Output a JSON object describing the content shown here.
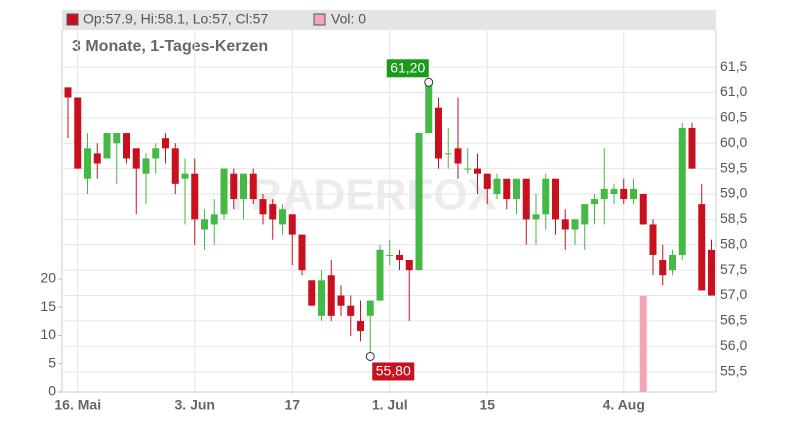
{
  "chart_data": {
    "type": "candlestick",
    "title": "3 Monate, 1-Tages-Kerzen",
    "watermark": "TRADERFOX",
    "header": {
      "ohlc": "Op:57.9, Hi:58.1, Lo:57, Cl:57",
      "volume": "Vol: 0"
    },
    "up_color": "#44b944",
    "down_color": "#c8101e",
    "volume_color": "#f0a6b3",
    "categories": [
      null,
      "16. Mai",
      null,
      null,
      null,
      null,
      null,
      null,
      null,
      null,
      null,
      null,
      null,
      "3. Jun",
      null,
      null,
      null,
      null,
      null,
      null,
      null,
      null,
      null,
      "17",
      null,
      null,
      null,
      null,
      null,
      null,
      null,
      null,
      null,
      "1. Jul",
      null,
      null,
      null,
      null,
      null,
      null,
      null,
      null,
      null,
      "15",
      null,
      null,
      null,
      null,
      null,
      null,
      null,
      null,
      null,
      null,
      null,
      null,
      null,
      "4. Aug",
      null,
      null,
      null,
      null,
      null,
      null,
      null,
      null,
      null
    ],
    "open": [
      61.1,
      60.9,
      59.3,
      59.8,
      59.7,
      60.0,
      60.2,
      59.9,
      59.4,
      59.7,
      60.1,
      59.9,
      59.3,
      59.4,
      58.3,
      58.4,
      58.6,
      59.4,
      58.9,
      59.4,
      58.9,
      58.8,
      58.4,
      58.6,
      58.2,
      57.3,
      56.6,
      57.4,
      57.0,
      56.8,
      56.5,
      56.6,
      56.9,
      57.8,
      57.8,
      57.7,
      57.5,
      60.2,
      60.7,
      59.8,
      59.9,
      59.5,
      59.5,
      59.4,
      59.0,
      59.3,
      58.9,
      59.3,
      58.5,
      58.6,
      59.3,
      58.5,
      58.3,
      58.4,
      58.8,
      58.9,
      59.0,
      59.1,
      58.9,
      59.0,
      58.4,
      57.7,
      57.5,
      57.8,
      60.3,
      58.8,
      57.9
    ],
    "high": [
      61.1,
      60.9,
      60.2,
      60.0,
      60.2,
      60.2,
      60.2,
      59.9,
      59.8,
      60.0,
      60.2,
      60.0,
      59.7,
      59.7,
      58.7,
      58.9,
      59.5,
      59.5,
      59.4,
      59.5,
      59.0,
      58.9,
      58.8,
      58.6,
      58.2,
      57.3,
      57.5,
      57.7,
      57.2,
      57.0,
      56.9,
      56.9,
      58.0,
      58.1,
      57.9,
      57.7,
      60.2,
      61.2,
      60.9,
      60.3,
      60.9,
      59.9,
      59.8,
      59.4,
      59.4,
      59.3,
      59.3,
      59.3,
      59.0,
      59.4,
      59.3,
      58.7,
      58.5,
      58.8,
      59.0,
      59.9,
      59.2,
      59.3,
      59.3,
      59.0,
      58.5,
      58.0,
      57.9,
      60.4,
      60.4,
      59.2,
      58.1
    ],
    "low": [
      60.1,
      59.5,
      59.0,
      59.3,
      59.7,
      59.2,
      59.6,
      58.6,
      58.8,
      59.4,
      59.6,
      59.0,
      58.4,
      58.0,
      57.9,
      58.0,
      58.5,
      58.7,
      58.5,
      58.8,
      58.4,
      58.1,
      58.2,
      57.6,
      57.4,
      56.8,
      56.5,
      56.5,
      56.6,
      56.2,
      56.1,
      55.8,
      56.9,
      57.6,
      57.5,
      56.5,
      57.5,
      60.2,
      59.5,
      59.5,
      59.3,
      59.4,
      59.0,
      58.8,
      58.9,
      58.7,
      58.6,
      58.0,
      58.0,
      58.3,
      58.2,
      57.9,
      58.0,
      57.9,
      58.4,
      58.4,
      58.8,
      58.8,
      58.8,
      58.4,
      57.4,
      57.2,
      57.4,
      57.7,
      59.5,
      57.1,
      57.0
    ],
    "close": [
      60.9,
      59.5,
      59.9,
      59.6,
      60.2,
      60.2,
      59.7,
      59.5,
      59.7,
      59.9,
      59.9,
      59.2,
      59.4,
      58.5,
      58.5,
      58.6,
      59.5,
      58.9,
      59.4,
      58.9,
      58.6,
      58.5,
      58.7,
      58.2,
      57.5,
      56.8,
      57.3,
      56.6,
      56.8,
      56.6,
      56.3,
      56.9,
      57.9,
      57.8,
      57.7,
      57.5,
      60.2,
      61.2,
      59.7,
      59.8,
      59.6,
      59.5,
      59.4,
      59.1,
      59.3,
      58.9,
      59.3,
      58.5,
      58.6,
      59.3,
      58.5,
      58.3,
      58.5,
      58.8,
      58.9,
      59.1,
      59.1,
      58.9,
      59.1,
      58.4,
      57.8,
      57.4,
      57.8,
      60.3,
      59.5,
      57.1,
      57.0
    ],
    "volume": [
      0,
      0,
      0,
      0,
      0,
      0,
      0,
      0,
      0,
      0,
      0,
      0,
      0,
      0,
      0,
      0,
      0,
      0,
      0,
      0,
      0,
      0,
      0,
      0,
      0,
      0,
      0,
      0,
      0,
      0,
      0,
      0,
      0,
      0,
      0,
      0,
      0,
      0,
      0,
      0,
      0,
      0,
      0,
      0,
      0,
      0,
      0,
      0,
      0,
      0,
      0,
      0,
      0,
      0,
      0,
      0,
      0,
      0,
      0,
      17,
      0,
      0,
      0,
      0,
      0,
      0,
      0
    ],
    "ylim": [
      55.1,
      62.23
    ],
    "yticks": [
      {
        "value": 55.5,
        "label": "55,5"
      },
      {
        "value": 56.0,
        "label": "56,0"
      },
      {
        "value": 56.5,
        "label": "56,5"
      },
      {
        "value": 57.0,
        "label": "57,0"
      },
      {
        "value": 57.5,
        "label": "57,5"
      },
      {
        "value": 58.0,
        "label": "58,0"
      },
      {
        "value": 58.5,
        "label": "58,5"
      },
      {
        "value": 59.0,
        "label": "59,0"
      },
      {
        "value": 59.5,
        "label": "59,5"
      },
      {
        "value": 60.0,
        "label": "60,0"
      },
      {
        "value": 60.5,
        "label": "60,5"
      },
      {
        "value": 61.0,
        "label": "61,0"
      },
      {
        "value": 61.5,
        "label": "61,5"
      }
    ],
    "y2lim": [
      0,
      64
    ],
    "y2ticks": [
      0,
      5,
      10,
      15,
      20
    ],
    "annotations": [
      {
        "text": "61,20",
        "value": 61.2,
        "candle": 37,
        "color": "#1a9a1a"
      },
      {
        "text": "55,80",
        "value": 55.8,
        "candle": 31,
        "color": "#c8101e"
      }
    ],
    "grid": true
  }
}
